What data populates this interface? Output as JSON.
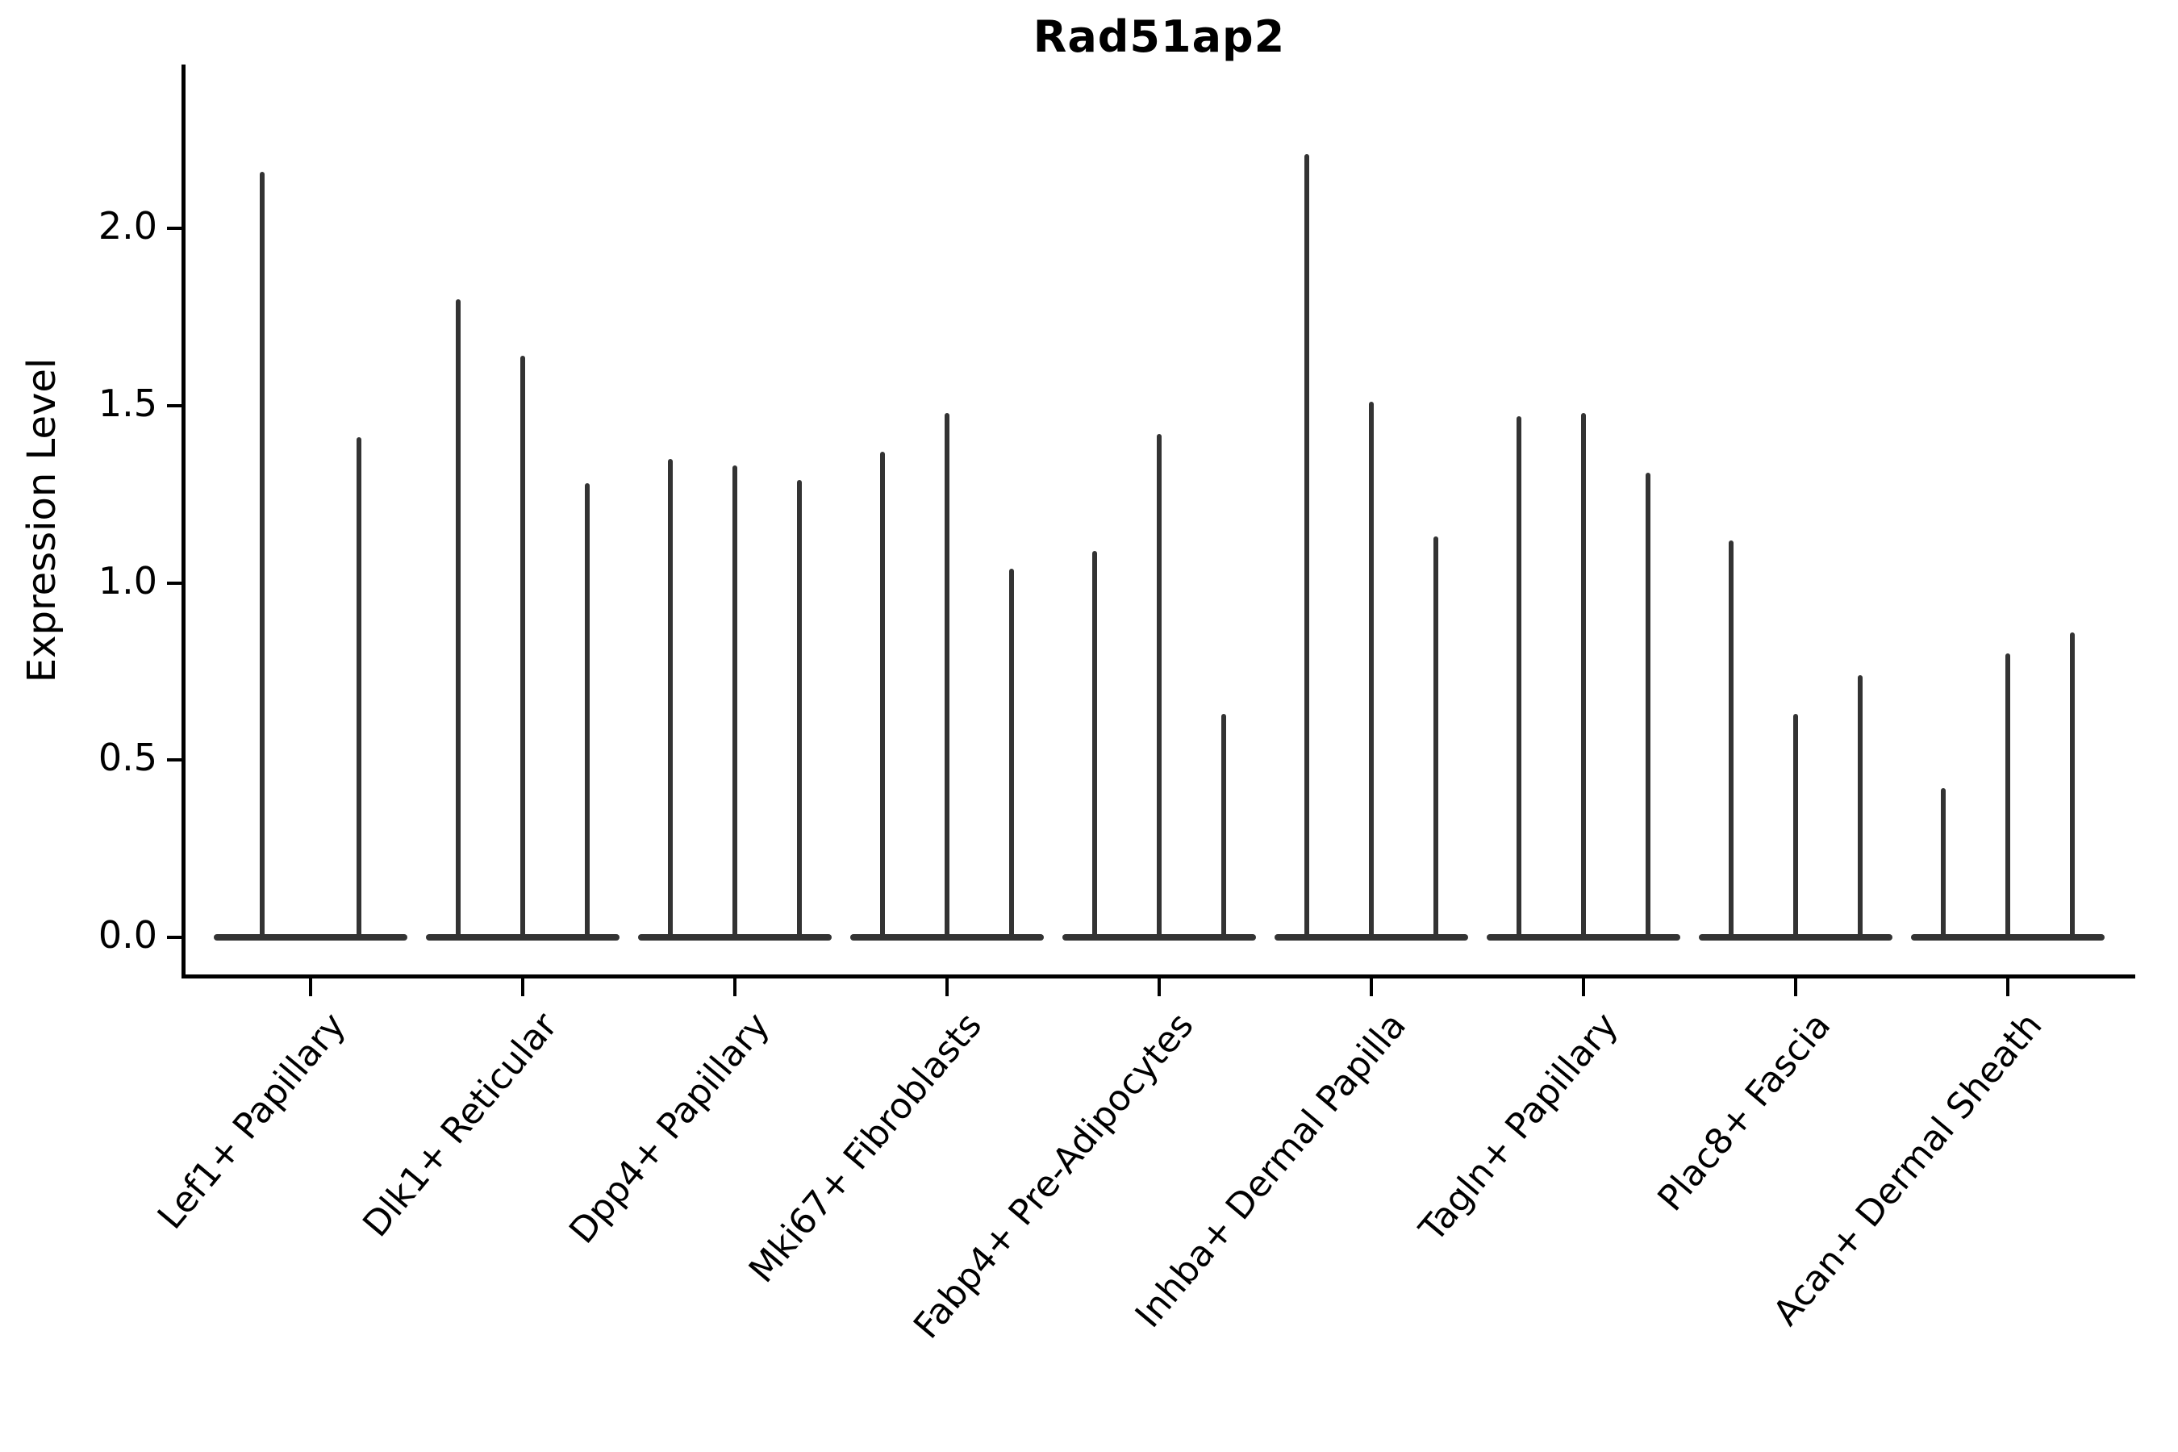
{
  "chart_data": {
    "type": "violin",
    "title": "Rad51ap2",
    "xlabel": "",
    "ylabel": "Expression Level",
    "ylim": [
      -0.11,
      2.46
    ],
    "yticks": [
      0.0,
      0.5,
      1.0,
      1.5,
      2.0
    ],
    "ytick_labels": [
      "0.0",
      "0.5",
      "1.0",
      "1.5",
      "2.0"
    ],
    "grid": false,
    "legend_position": "none",
    "description": "Stacked thin violin plot of gene expression; most mass at 0 (flat base), each violin shows a narrow spike up to its maximum expression value",
    "categories": [
      "Lef1+ Papillary",
      "Dlk1+ Reticular",
      "Dpp4+ Papillary",
      "Mki67+ Fibroblasts",
      "Fabp4+ Pre-Adipocytes",
      "Inhba+ Dermal Papilla",
      "Tagln+ Papillary",
      "Plac8+ Fascia",
      "Acan+ Dermal Sheath"
    ],
    "series": [
      {
        "category": "Lef1+ Papillary",
        "spike_max_values": [
          2.16,
          1.41
        ]
      },
      {
        "category": "Dlk1+ Reticular",
        "spike_max_values": [
          1.8,
          1.64,
          1.28
        ]
      },
      {
        "category": "Dpp4+ Papillary",
        "spike_max_values": [
          1.35,
          1.33,
          1.29
        ]
      },
      {
        "category": "Mki67+ Fibroblasts",
        "spike_max_values": [
          1.37,
          1.48,
          1.04
        ]
      },
      {
        "category": "Fabp4+ Pre-Adipocytes",
        "spike_max_values": [
          1.09,
          1.42,
          0.63
        ]
      },
      {
        "category": "Inhba+ Dermal Papilla",
        "spike_max_values": [
          2.21,
          1.51,
          1.13
        ]
      },
      {
        "category": "Tagln+ Papillary",
        "spike_max_values": [
          1.47,
          1.48,
          1.31
        ]
      },
      {
        "category": "Plac8+ Fascia",
        "spike_max_values": [
          1.12,
          0.63,
          0.74
        ]
      },
      {
        "category": "Acan+ Dermal Sheath",
        "spike_max_values": [
          0.42,
          0.8,
          0.86
        ]
      }
    ],
    "colors": {
      "violin": "#333333",
      "axis": "#000000",
      "background": "#ffffff",
      "text": "#000000"
    }
  }
}
